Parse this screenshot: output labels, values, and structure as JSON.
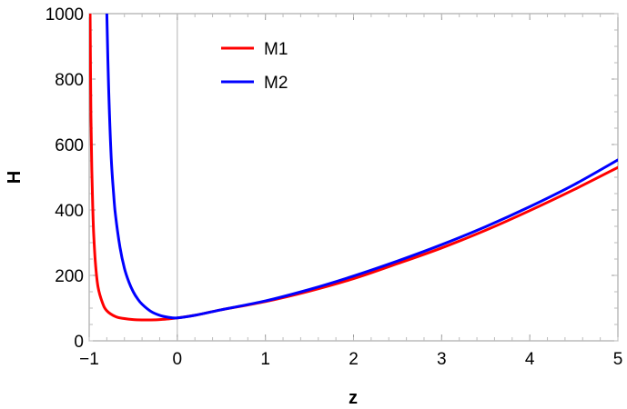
{
  "chart_data": {
    "type": "line",
    "xlabel": "z",
    "ylabel": "H",
    "xlim": [
      -1,
      5
    ],
    "ylim": [
      0,
      1000
    ],
    "x_ticks": [
      -1,
      0,
      1,
      2,
      3,
      4,
      5
    ],
    "x_tick_labels": [
      "−1",
      "0",
      "1",
      "2",
      "3",
      "4",
      "5"
    ],
    "y_ticks": [
      0,
      200,
      400,
      600,
      800,
      1000
    ],
    "y_tick_labels": [
      "0",
      "200",
      "400",
      "600",
      "800",
      "1000"
    ],
    "grid": false,
    "legend_position": "top-center",
    "series": [
      {
        "name": "M1",
        "color": "#ff0000",
        "x": [
          -0.99,
          -0.98,
          -0.97,
          -0.96,
          -0.95,
          -0.93,
          -0.9,
          -0.85,
          -0.8,
          -0.7,
          -0.6,
          -0.5,
          -0.4,
          -0.3,
          -0.2,
          -0.1,
          0,
          0.2,
          0.5,
          1,
          1.5,
          2,
          2.5,
          3,
          3.5,
          4,
          4.5,
          5
        ],
        "y": [
          1000,
          690,
          520,
          410,
          335,
          240,
          165,
          117,
          92,
          74,
          68,
          65,
          64,
          64,
          65,
          67,
          70,
          78,
          95,
          120,
          152,
          190,
          236,
          284,
          338,
          398,
          462,
          530
        ]
      },
      {
        "name": "M2",
        "color": "#0000ff",
        "x": [
          -0.8,
          -0.78,
          -0.75,
          -0.72,
          -0.7,
          -0.65,
          -0.6,
          -0.55,
          -0.5,
          -0.45,
          -0.4,
          -0.3,
          -0.2,
          -0.1,
          0,
          0.2,
          0.5,
          1,
          1.5,
          2,
          2.5,
          3,
          3.5,
          4,
          4.5,
          5
        ],
        "y": [
          1000,
          780,
          560,
          440,
          380,
          285,
          222,
          180,
          150,
          128,
          112,
          90,
          78,
          72,
          70,
          78,
          95,
          122,
          157,
          198,
          244,
          294,
          349,
          410,
          477,
          553
        ]
      }
    ]
  }
}
